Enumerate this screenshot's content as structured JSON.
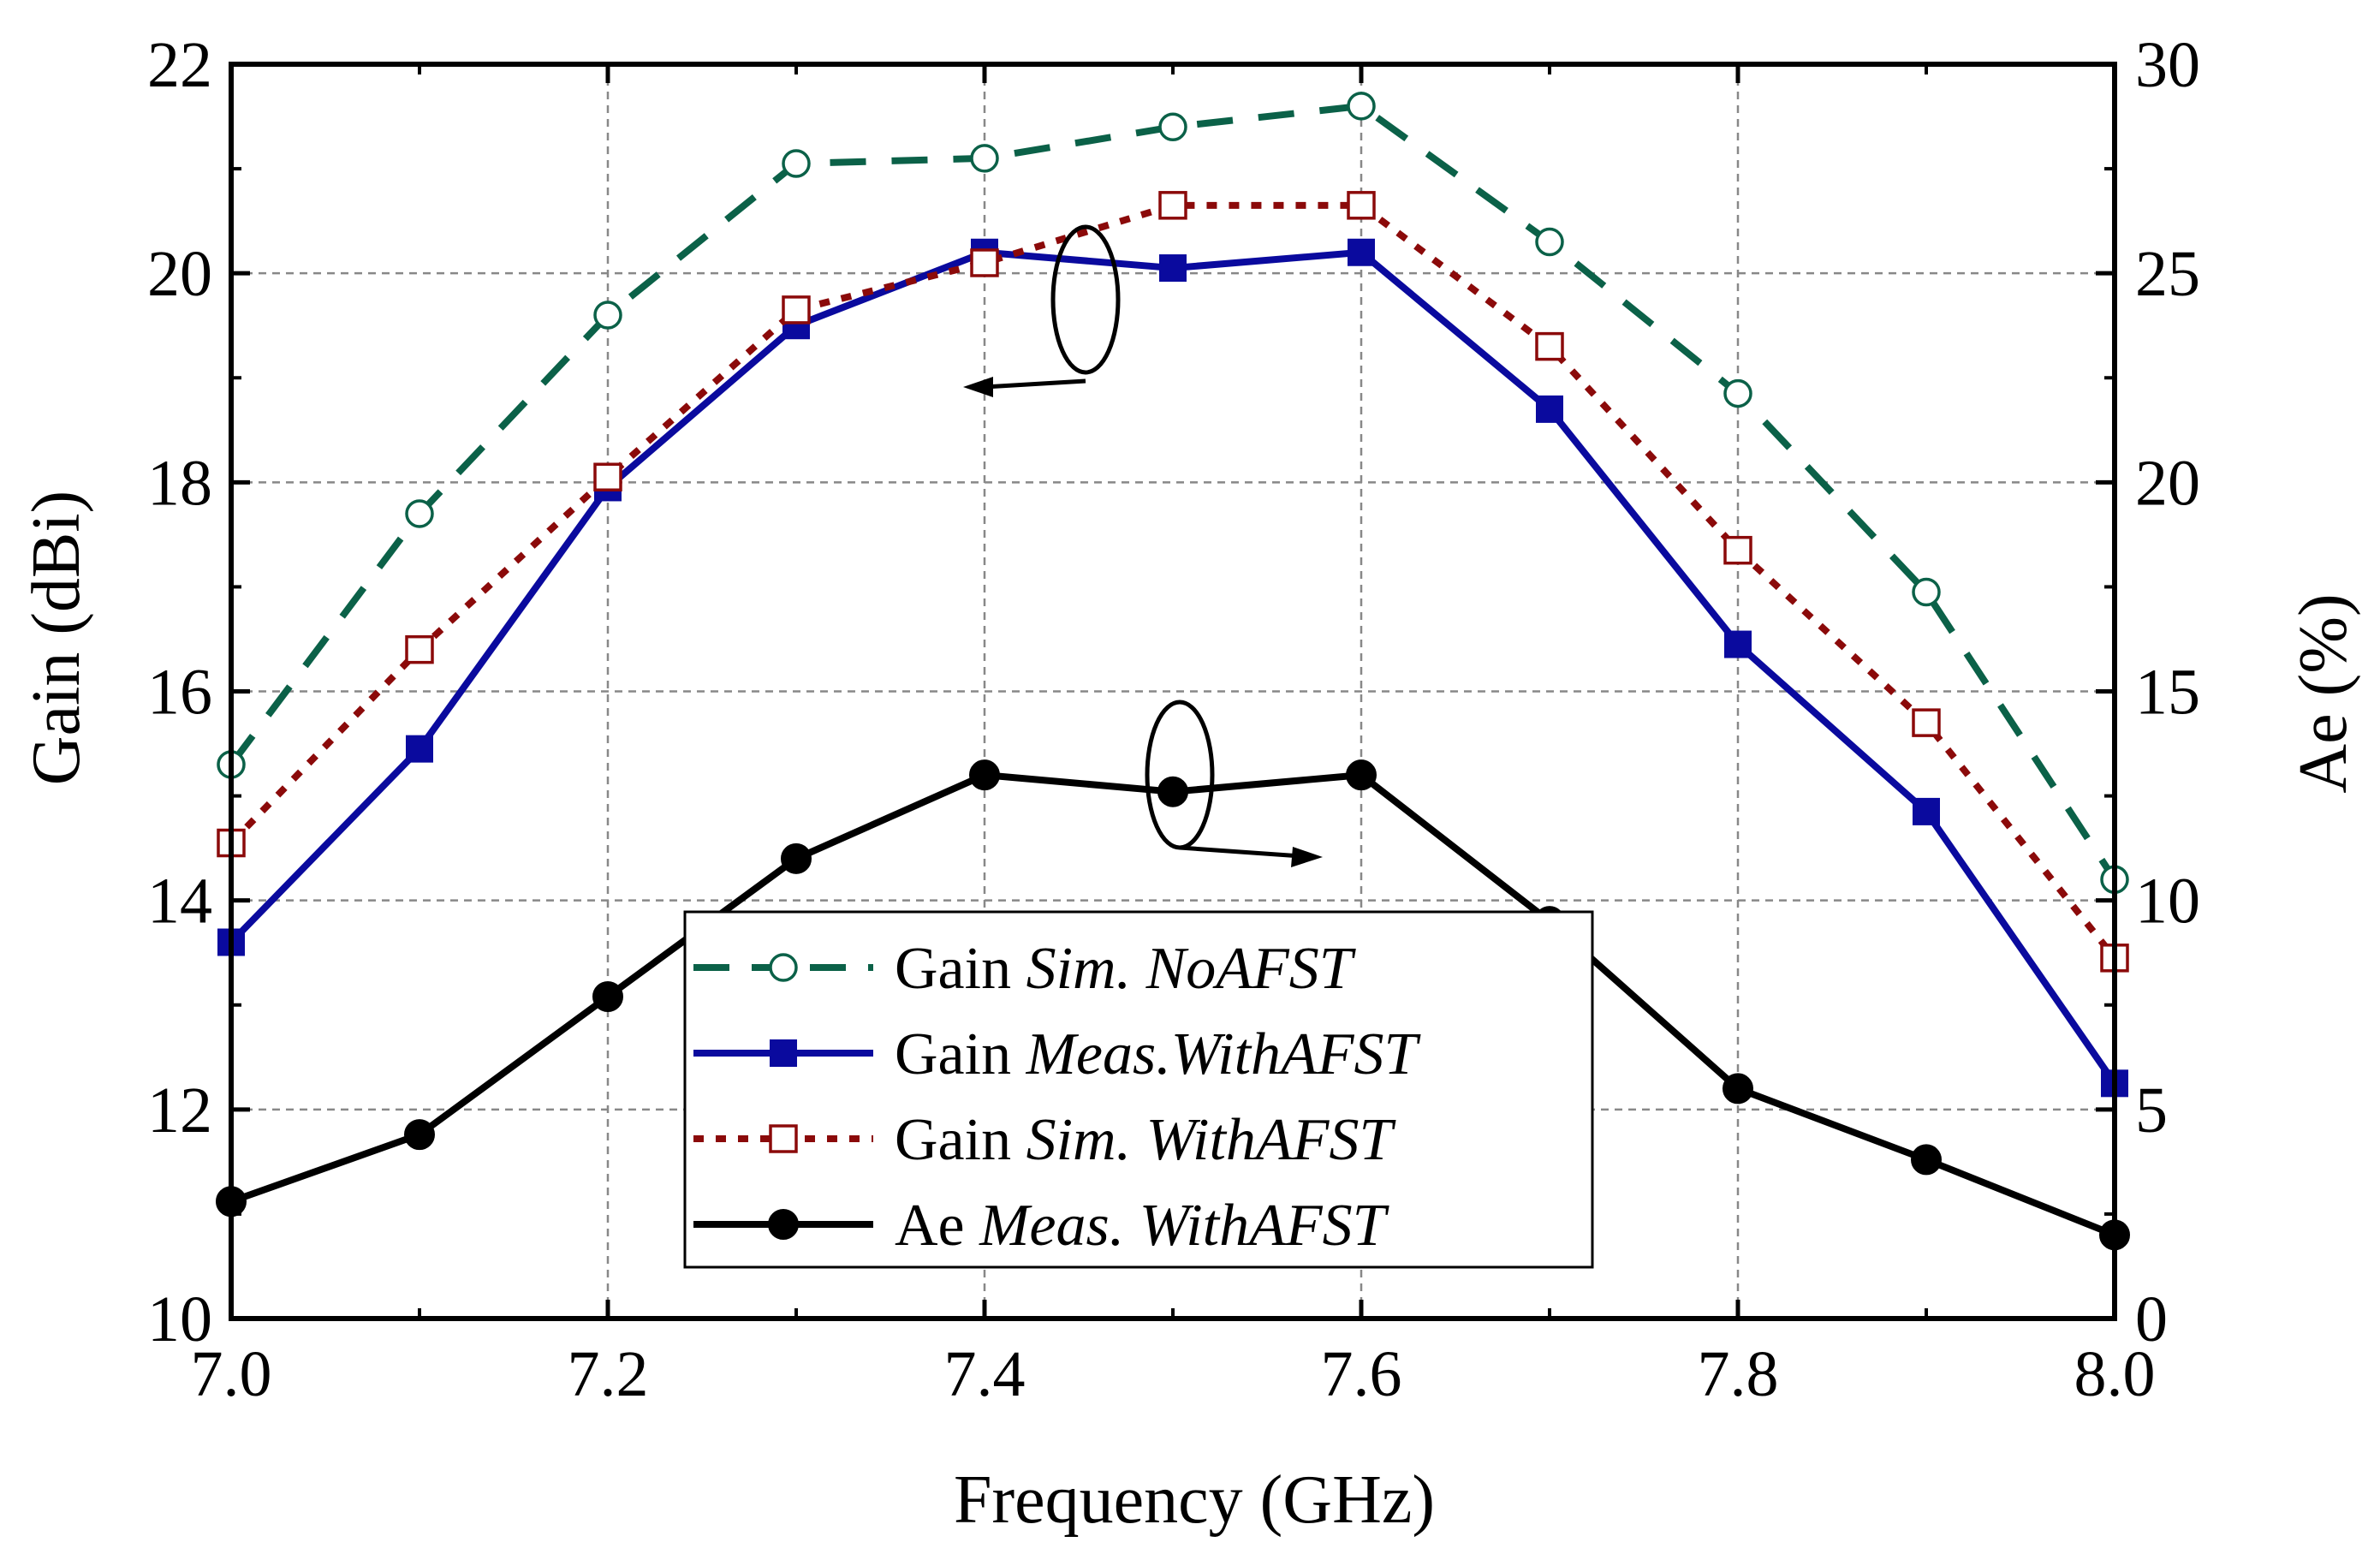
{
  "chart_data": {
    "type": "line",
    "x": [
      7.0,
      7.1,
      7.2,
      7.3,
      7.4,
      7.5,
      7.6,
      7.7,
      7.8,
      7.9,
      8.0
    ],
    "xlabel": "Frequency (GHz)",
    "ylabel_left": "Gain (dBi)",
    "ylabel_right": "Ae (%)",
    "xlim": [
      7.0,
      8.0
    ],
    "ylim_left": [
      10,
      22
    ],
    "ylim_right": [
      0,
      30
    ],
    "x_ticks": [
      "7.0",
      "7.2",
      "7.4",
      "7.6",
      "7.8",
      "8.0"
    ],
    "y_ticks_left": [
      "10",
      "12",
      "14",
      "16",
      "18",
      "20",
      "22"
    ],
    "y_ticks_right": [
      "0",
      "5",
      "10",
      "15",
      "20",
      "25",
      "30"
    ],
    "grid": true,
    "legend_position": "lower-center",
    "series": [
      {
        "name": "Gain Sim. NoAFST",
        "legend_plain": "Gain ",
        "legend_italic": "Sim.  NoAFST",
        "axis": "left",
        "color": "#0b6148",
        "line": "dash",
        "marker": "open-circle",
        "values": [
          15.3,
          17.7,
          19.6,
          21.05,
          21.1,
          21.4,
          21.6,
          20.3,
          18.85,
          16.95,
          14.2
        ]
      },
      {
        "name": "Gain Meas.WithAFST",
        "legend_plain": "Gain ",
        "legend_italic": "Meas.WithAFST",
        "axis": "left",
        "color": "#0a0a9e",
        "line": "solid",
        "marker": "filled-square",
        "values": [
          13.6,
          15.45,
          17.95,
          19.5,
          20.2,
          20.05,
          20.2,
          18.7,
          16.45,
          14.85,
          12.25
        ]
      },
      {
        "name": "Gain Sim. WithAFST",
        "legend_plain": "Gain ",
        "legend_italic": "Sim.  WithAFST",
        "axis": "left",
        "color": "#8b0a0a",
        "line": "dot",
        "marker": "open-square",
        "values": [
          14.55,
          16.4,
          18.05,
          19.65,
          20.1,
          20.65,
          20.65,
          19.3,
          17.35,
          15.7,
          13.45
        ]
      },
      {
        "name": "Ae Meas. WithAFST",
        "legend_plain": "Ae ",
        "legend_italic": "Meas.  WithAFST",
        "axis": "right",
        "color": "#000000",
        "line": "solid",
        "marker": "filled-circle",
        "values": [
          2.8,
          4.4,
          7.7,
          11.0,
          13.0,
          12.6,
          13.0,
          9.5,
          5.5,
          3.8,
          2.0
        ]
      }
    ]
  }
}
